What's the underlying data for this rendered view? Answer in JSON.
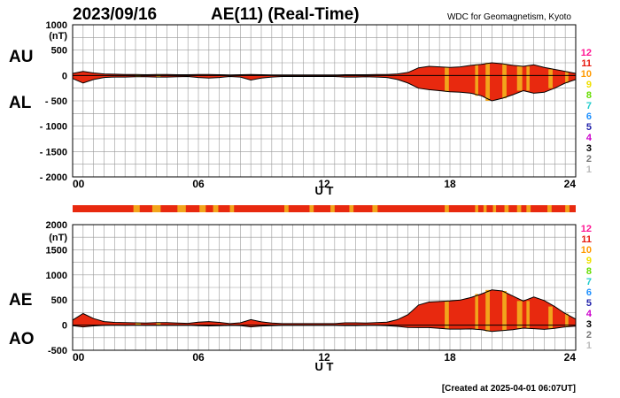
{
  "header": {
    "date": "2023/09/16",
    "title": "AE(11) (Real-Time)",
    "source": "WDC for Geomagnetism, Kyoto"
  },
  "footer": {
    "created": "[Created at 2025-04-01 06:07UT]"
  },
  "station_legend": {
    "labels": [
      "12",
      "11",
      "10",
      "9",
      "8",
      "7",
      "6",
      "5",
      "4",
      "3",
      "2",
      "1"
    ],
    "colors": [
      "#ff1493",
      "#e8190f",
      "#ff9900",
      "#f0e000",
      "#66dd00",
      "#22cccc",
      "#1e90ff",
      "#2222aa",
      "#cc00cc",
      "#000000",
      "#777777",
      "#bbbbbb"
    ]
  },
  "colors": {
    "fill_main": "#e8290f",
    "fill_gap": "#f2a51c",
    "outline": "#000000",
    "grid": "#999999"
  },
  "chart_data": [
    {
      "type": "area",
      "panel": "top",
      "ylabel_unit": "(nT)",
      "ylim": [
        -2000,
        1000
      ],
      "yticks": [
        1000,
        500,
        0,
        -500,
        -1000,
        -1500,
        -2000
      ],
      "ytick_labels": [
        "1000",
        "500",
        "0",
        "- 500",
        "- 1000",
        "- 1500",
        "- 2000"
      ],
      "xlim": [
        0,
        24
      ],
      "xticks": [
        0,
        6,
        12,
        18,
        24
      ],
      "xtick_labels": [
        "00",
        "06",
        "12",
        "18",
        "24"
      ],
      "xlabel": "U T",
      "grid": true,
      "side_labels": [
        "AU",
        "AL"
      ],
      "x": [
        0,
        0.5,
        1,
        1.5,
        2,
        2.5,
        3,
        3.5,
        4,
        4.5,
        5,
        5.5,
        6,
        6.5,
        7,
        7.5,
        8,
        8.5,
        9,
        9.5,
        10,
        10.5,
        11,
        11.5,
        12,
        12.5,
        13,
        13.5,
        14,
        14.5,
        15,
        15.5,
        16,
        16.5,
        17,
        17.5,
        18,
        18.5,
        19,
        19.5,
        20,
        20.5,
        21,
        21.5,
        22,
        22.5,
        23,
        23.5,
        24
      ],
      "series": [
        {
          "name": "AU",
          "values": [
            40,
            80,
            50,
            30,
            25,
            20,
            20,
            15,
            20,
            20,
            15,
            15,
            20,
            20,
            15,
            10,
            15,
            20,
            15,
            10,
            10,
            10,
            10,
            10,
            10,
            10,
            15,
            15,
            15,
            20,
            20,
            30,
            60,
            150,
            180,
            170,
            160,
            170,
            200,
            220,
            250,
            230,
            200,
            180,
            210,
            160,
            120,
            80,
            40
          ]
        },
        {
          "name": "AL",
          "values": [
            -60,
            -150,
            -80,
            -40,
            -30,
            -30,
            -25,
            -25,
            -30,
            -30,
            -25,
            -20,
            -40,
            -50,
            -40,
            -20,
            -30,
            -90,
            -50,
            -30,
            -20,
            -20,
            -20,
            -20,
            -20,
            -20,
            -30,
            -30,
            -25,
            -30,
            -40,
            -80,
            -150,
            -250,
            -280,
            -300,
            -320,
            -330,
            -350,
            -400,
            -500,
            -450,
            -380,
            -300,
            -350,
            -330,
            -250,
            -150,
            -80
          ]
        }
      ],
      "gap_bands": [
        [
          3.0,
          3.25
        ],
        [
          4.0,
          4.2
        ],
        [
          17.75,
          17.95
        ],
        [
          19.2,
          19.35
        ],
        [
          19.7,
          19.9
        ],
        [
          20.5,
          20.7
        ],
        [
          21.2,
          21.45
        ],
        [
          21.65,
          21.8
        ],
        [
          22.7,
          22.9
        ],
        [
          23.5,
          23.65
        ]
      ]
    },
    {
      "type": "area",
      "panel": "bottom",
      "ylabel_unit": "(nT)",
      "ylim": [
        -500,
        2000
      ],
      "yticks": [
        2000,
        1500,
        1000,
        500,
        0,
        -500
      ],
      "ytick_labels": [
        "2000",
        "1500",
        "1000",
        "500",
        "0",
        "-500"
      ],
      "xlim": [
        0,
        24
      ],
      "xticks": [
        0,
        6,
        12,
        18,
        24
      ],
      "xtick_labels": [
        "00",
        "06",
        "12",
        "18",
        "24"
      ],
      "xlabel": "U T",
      "grid": true,
      "side_labels": [
        "AE",
        "AO"
      ],
      "x": [
        0,
        0.5,
        1,
        1.5,
        2,
        2.5,
        3,
        3.5,
        4,
        4.5,
        5,
        5.5,
        6,
        6.5,
        7,
        7.5,
        8,
        8.5,
        9,
        9.5,
        10,
        10.5,
        11,
        11.5,
        12,
        12.5,
        13,
        13.5,
        14,
        14.5,
        15,
        15.5,
        16,
        16.5,
        17,
        17.5,
        18,
        18.5,
        19,
        19.5,
        20,
        20.5,
        21,
        21.5,
        22,
        22.5,
        23,
        23.5,
        24
      ],
      "series": [
        {
          "name": "AE",
          "values": [
            100,
            230,
            130,
            70,
            55,
            50,
            45,
            40,
            50,
            50,
            40,
            35,
            60,
            70,
            55,
            30,
            45,
            110,
            65,
            40,
            30,
            30,
            30,
            30,
            30,
            30,
            45,
            45,
            40,
            50,
            60,
            110,
            210,
            400,
            460,
            470,
            480,
            500,
            550,
            620,
            700,
            680,
            580,
            480,
            560,
            490,
            370,
            230,
            120
          ]
        },
        {
          "name": "AO",
          "values": [
            -10,
            -35,
            -15,
            -5,
            -3,
            -5,
            -3,
            -5,
            -5,
            -5,
            -5,
            -3,
            -10,
            -15,
            -13,
            -5,
            -8,
            -35,
            -18,
            -10,
            -5,
            -5,
            -5,
            -5,
            -5,
            -5,
            -8,
            -8,
            -5,
            -5,
            -10,
            -25,
            -45,
            -50,
            -50,
            -65,
            -80,
            -80,
            -75,
            -90,
            -125,
            -110,
            -90,
            -60,
            -70,
            -85,
            -65,
            -35,
            -20
          ]
        }
      ],
      "gap_bands": [
        [
          3.0,
          3.25
        ],
        [
          4.0,
          4.2
        ],
        [
          17.75,
          17.95
        ],
        [
          19.2,
          19.35
        ],
        [
          19.7,
          19.9
        ],
        [
          20.5,
          20.7
        ],
        [
          21.2,
          21.45
        ],
        [
          21.65,
          21.8
        ],
        [
          22.7,
          22.9
        ],
        [
          23.5,
          23.65
        ]
      ]
    },
    {
      "type": "bar",
      "panel": "station-count-strip",
      "xlim": [
        0,
        24
      ],
      "segments": [
        {
          "start": 0,
          "end": 24,
          "stations": 11
        },
        {
          "start": 2.9,
          "end": 3.2,
          "stations": 10
        },
        {
          "start": 3.8,
          "end": 4.2,
          "stations": 10
        },
        {
          "start": 5.0,
          "end": 5.4,
          "stations": 10
        },
        {
          "start": 6.05,
          "end": 6.35,
          "stations": 10
        },
        {
          "start": 6.7,
          "end": 6.95,
          "stations": 10
        },
        {
          "start": 7.5,
          "end": 7.7,
          "stations": 10
        },
        {
          "start": 10.1,
          "end": 10.3,
          "stations": 10
        },
        {
          "start": 11.3,
          "end": 11.5,
          "stations": 10
        },
        {
          "start": 12.3,
          "end": 12.5,
          "stations": 10
        },
        {
          "start": 13.2,
          "end": 13.4,
          "stations": 10
        },
        {
          "start": 14.3,
          "end": 14.55,
          "stations": 10
        },
        {
          "start": 17.75,
          "end": 17.95,
          "stations": 10
        },
        {
          "start": 19.2,
          "end": 19.35,
          "stations": 10
        },
        {
          "start": 19.6,
          "end": 19.75,
          "stations": 10
        },
        {
          "start": 20.05,
          "end": 20.2,
          "stations": 10
        },
        {
          "start": 20.6,
          "end": 20.8,
          "stations": 10
        },
        {
          "start": 21.2,
          "end": 21.4,
          "stations": 10
        },
        {
          "start": 21.65,
          "end": 21.85,
          "stations": 10
        },
        {
          "start": 22.65,
          "end": 22.85,
          "stations": 10
        },
        {
          "start": 23.5,
          "end": 23.7,
          "stations": 10
        }
      ]
    }
  ]
}
